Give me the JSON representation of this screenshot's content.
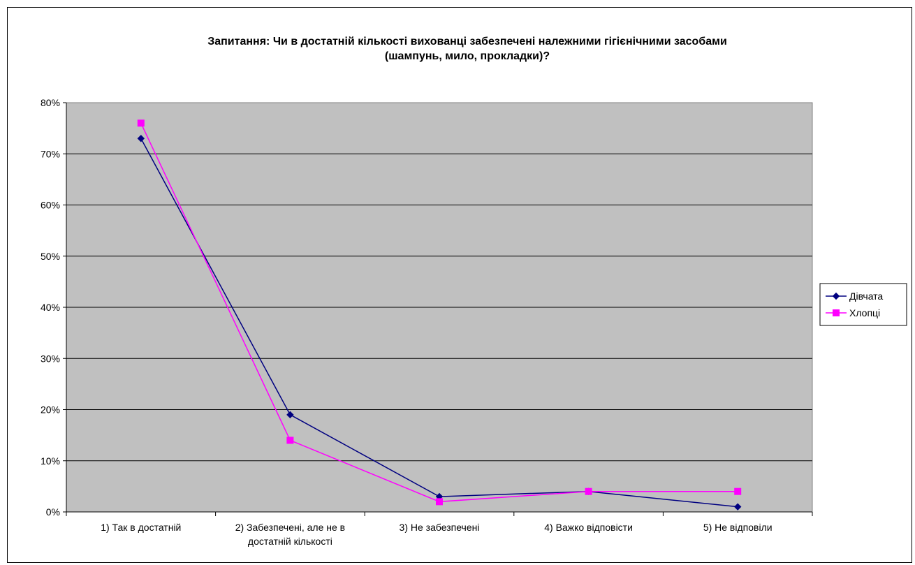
{
  "chart_data": {
    "type": "line",
    "title_lines": [
      "Запитання: Чи в достатній кількості вихованці забезпечені належними гігієнічними засобами",
      "(шампунь, мило, прокладки)?"
    ],
    "categories": [
      [
        "1) Так в достатній"
      ],
      [
        "2) Забезпечені, але не в",
        "достатній кількості"
      ],
      [
        "3) Не забезпечені"
      ],
      [
        "4) Важко відповісти"
      ],
      [
        "5) Не відповіли"
      ]
    ],
    "y_ticks": [
      "0%",
      "10%",
      "20%",
      "30%",
      "40%",
      "50%",
      "60%",
      "70%",
      "80%"
    ],
    "ylim": [
      0,
      0.8
    ],
    "y_format": "percent",
    "plot_background": "#c0c0c0",
    "grid": true,
    "legend_position": "right",
    "series": [
      {
        "name": "Дівчата",
        "color": "#000080",
        "marker": "diamond",
        "values": [
          0.73,
          0.19,
          0.03,
          0.04,
          0.01
        ]
      },
      {
        "name": "Хлопці",
        "color": "#ff00ff",
        "marker": "square",
        "values": [
          0.76,
          0.14,
          0.02,
          0.04,
          0.04
        ]
      }
    ]
  }
}
